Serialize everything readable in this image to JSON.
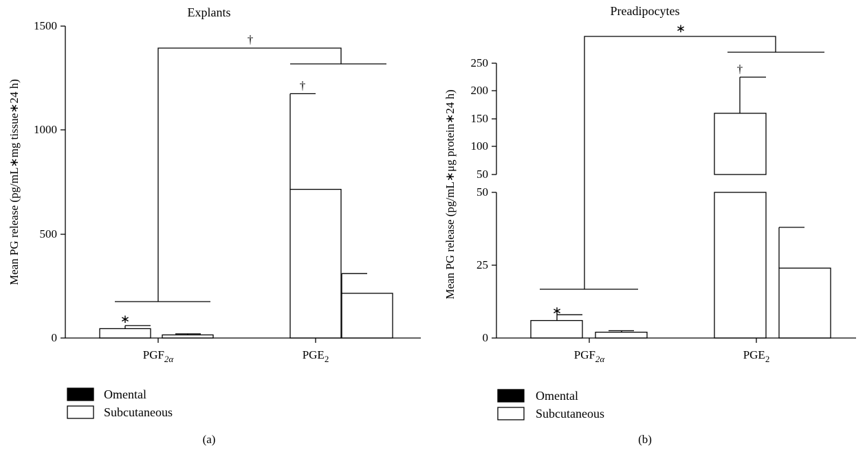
{
  "chart_data": [
    {
      "type": "bar",
      "title": "Explants",
      "ylabel": "Mean PG release (pg/mL∗mg tissue∗24 h)",
      "ylim": [
        0,
        1500
      ],
      "yticks": [
        "0",
        "500",
        "1000",
        "1500"
      ],
      "categories": [
        "PGF",
        "PGE"
      ],
      "category_subscripts": [
        "2α",
        "2"
      ],
      "series": [
        {
          "name": "Omental",
          "color": "#000000",
          "values": [
            45,
            715
          ],
          "errors": [
            15,
            460
          ]
        },
        {
          "name": "Subcutaneous",
          "color": "#ffffff",
          "values": [
            15,
            215
          ],
          "errors": [
            5,
            95
          ]
        }
      ],
      "annotations": [
        {
          "text": "∗",
          "near": "PGF Omental"
        },
        {
          "text": "†",
          "near": "PGE Omental"
        },
        {
          "text": "†",
          "near": "PGF vs PGE bracket"
        }
      ],
      "panel_label": "(a)"
    },
    {
      "type": "bar",
      "title": "Preadipocytes",
      "ylabel": "Mean PG release (pg/mL∗μg protein∗24 h)",
      "broken_axis": true,
      "ylim_lower": [
        0,
        50
      ],
      "ylim_upper": [
        50,
        250
      ],
      "yticks_lower": [
        "0",
        "25",
        "50"
      ],
      "yticks_upper": [
        "50",
        "100",
        "150",
        "200",
        "250"
      ],
      "categories": [
        "PGF",
        "PGE"
      ],
      "category_subscripts": [
        "2α",
        "2"
      ],
      "series": [
        {
          "name": "Omental",
          "color": "#000000",
          "values": [
            6,
            160
          ],
          "errors": [
            2,
            65
          ]
        },
        {
          "name": "Subcutaneous",
          "color": "#ffffff",
          "values": [
            2,
            24
          ],
          "errors": [
            0.5,
            14
          ]
        }
      ],
      "annotations": [
        {
          "text": "∗",
          "near": "PGF Omental"
        },
        {
          "text": "†",
          "near": "PGE Omental"
        },
        {
          "text": "∗",
          "near": "PGF vs PGE bracket"
        }
      ],
      "panel_label": "(b)"
    }
  ],
  "legend": [
    {
      "label": "Omental",
      "color": "#000000"
    },
    {
      "label": "Subcutaneous",
      "color": "#ffffff"
    }
  ]
}
